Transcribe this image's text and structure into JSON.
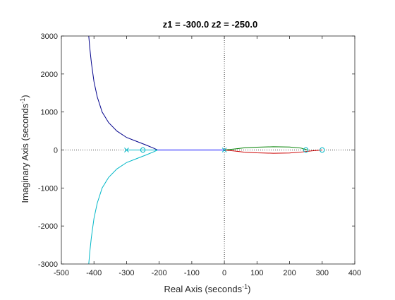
{
  "chart_data": {
    "type": "line",
    "title": "z1 = -300.0  z2 = -250.0",
    "xlabel": {
      "prefix": "Real Axis (seconds",
      "sup": "-1",
      "suffix": ")"
    },
    "ylabel": {
      "prefix": "Imaginary Axis (seconds",
      "sup": "-1",
      "suffix": ")"
    },
    "xlim": [
      -500,
      400
    ],
    "ylim": [
      -3000,
      3000
    ],
    "xticks": [
      -500,
      -400,
      -300,
      -200,
      -100,
      0,
      100,
      200,
      300,
      400
    ],
    "yticks": [
      -3000,
      -2000,
      -1000,
      0,
      1000,
      2000,
      3000
    ],
    "xtick_labels": [
      "-500",
      "-400",
      "-300",
      "-200",
      "-100",
      "0",
      "100",
      "200",
      "300",
      "400"
    ],
    "ytick_labels": [
      "-3000",
      "-2000",
      "-1000",
      "0",
      "1000",
      "2000",
      "3000"
    ],
    "grid": false,
    "series": [
      {
        "color": "#00008b",
        "points": [
          [
            -205,
            0
          ],
          [
            -215,
            40
          ],
          [
            -240,
            130
          ],
          [
            -270,
            230
          ],
          [
            -300,
            330
          ],
          [
            -330,
            500
          ],
          [
            -355,
            720
          ],
          [
            -375,
            1000
          ],
          [
            -390,
            1400
          ],
          [
            -400,
            1800
          ],
          [
            -408,
            2300
          ],
          [
            -413,
            2700
          ],
          [
            -416,
            3000
          ]
        ]
      },
      {
        "color": "#00b7c7",
        "points": [
          [
            -205,
            0
          ],
          [
            -215,
            -40
          ],
          [
            -240,
            -130
          ],
          [
            -270,
            -230
          ],
          [
            -300,
            -330
          ],
          [
            -330,
            -500
          ],
          [
            -355,
            -720
          ],
          [
            -375,
            -1000
          ],
          [
            -390,
            -1400
          ],
          [
            -400,
            -1800
          ],
          [
            -408,
            -2300
          ],
          [
            -413,
            -2700
          ],
          [
            -416,
            -3000
          ]
        ]
      },
      {
        "color": "#00b7c7",
        "points": [
          [
            -300,
            0
          ],
          [
            -205,
            0
          ]
        ]
      },
      {
        "color": "#0000ff",
        "points": [
          [
            -205,
            0
          ],
          [
            0,
            0
          ]
        ]
      },
      {
        "color": "#008000",
        "points": [
          [
            0,
            0
          ],
          [
            30,
            25
          ],
          [
            60,
            55
          ],
          [
            100,
            75
          ],
          [
            150,
            85
          ],
          [
            200,
            80
          ],
          [
            235,
            50
          ],
          [
            255,
            0
          ]
        ]
      },
      {
        "color": "#cc0000",
        "points": [
          [
            0,
            0
          ],
          [
            30,
            -25
          ],
          [
            60,
            -55
          ],
          [
            100,
            -75
          ],
          [
            150,
            -85
          ],
          [
            200,
            -80
          ],
          [
            240,
            -50
          ],
          [
            270,
            -20
          ],
          [
            300,
            0
          ]
        ]
      }
    ],
    "poles": [
      {
        "x": -300,
        "y": 0,
        "color": "#00b7c7"
      },
      {
        "x": 0,
        "y": 0,
        "color": "#00b7c7"
      }
    ],
    "zeros": [
      {
        "x": -250,
        "y": 0,
        "color": "#00b7c7"
      },
      {
        "x": 250,
        "y": 0,
        "color": "#00b7c7"
      },
      {
        "x": 300,
        "y": 0,
        "color": "#00b7c7"
      }
    ],
    "reference_lines": {
      "x0_vertical": true,
      "y0_horizontal": true,
      "style": "dotted"
    }
  }
}
